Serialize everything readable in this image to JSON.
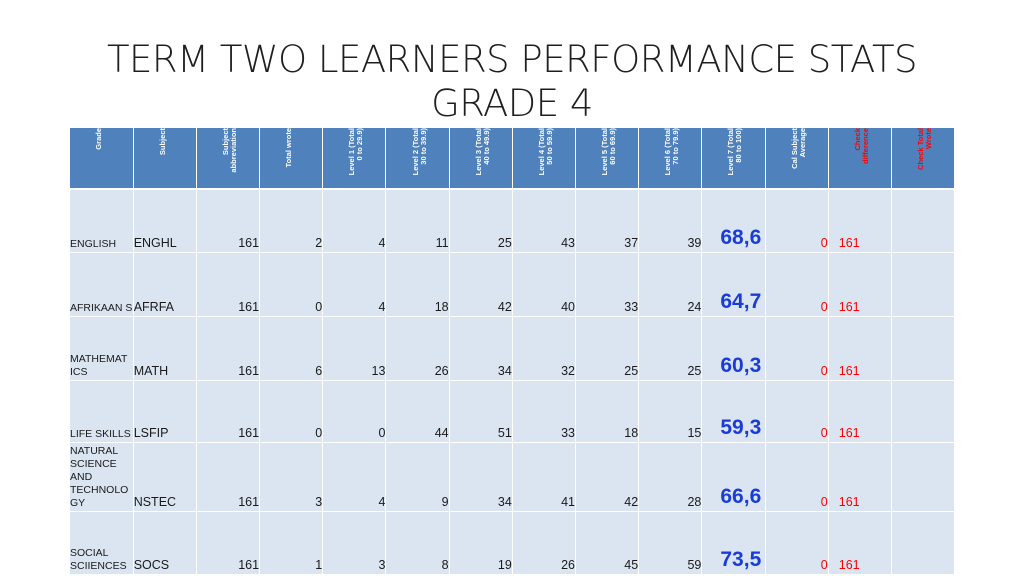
{
  "title": {
    "line1": "TERM TWO LEARNERS PERFORMANCE STATS",
    "line2": "GRADE 4"
  },
  "headers": [
    {
      "text": "Grade",
      "red": false
    },
    {
      "text": "Subject",
      "red": false
    },
    {
      "text": "Subject\nabbreviation",
      "red": false
    },
    {
      "text": "Total wrote",
      "red": false
    },
    {
      "text": "Level 1 (Total\n0 to 29.9)",
      "red": false
    },
    {
      "text": "Level 2 (Total\n30 to 39.9)",
      "red": false
    },
    {
      "text": "Level 3 (Total\n40 to 49.9)",
      "red": false
    },
    {
      "text": "Level 4 (Total\n50 to 59.9)",
      "red": false
    },
    {
      "text": "Level 5 (Total\n60 to 69.9)",
      "red": false
    },
    {
      "text": "Level 6 (Total\n70 to 79.9)",
      "red": false
    },
    {
      "text": "Level 7 (Total\n80 to 100)",
      "red": false
    },
    {
      "text": "Cal Subject\nAverage",
      "red": false
    },
    {
      "text": "Check\ndifference",
      "red": true
    },
    {
      "text": "Check Total\nWrote",
      "red": true
    }
  ],
  "rows": [
    {
      "subject": "ENGLISH",
      "abbr": "ENGHL",
      "total": "161",
      "l1": "2",
      "l2": "4",
      "l3": "11",
      "l4": "25",
      "l5": "43",
      "l6": "37",
      "l7": "39",
      "avg": "68,6",
      "diff": "0",
      "wrote": "161"
    },
    {
      "subject": "AFRIKAAN S",
      "abbr": "AFRFA",
      "total": "161",
      "l1": "0",
      "l2": "4",
      "l3": "18",
      "l4": "42",
      "l5": "40",
      "l6": "33",
      "l7": "24",
      "avg": "64,7",
      "diff": "0",
      "wrote": "161"
    },
    {
      "subject": "MATHEMAT ICS",
      "abbr": "MATH",
      "total": "161",
      "l1": "6",
      "l2": "13",
      "l3": "26",
      "l4": "34",
      "l5": "32",
      "l6": "25",
      "l7": "25",
      "avg": "60,3",
      "diff": "0",
      "wrote": "161"
    },
    {
      "subject": "LIFE SKILLS",
      "abbr": "LSFIP",
      "total": "161",
      "l1": "0",
      "l2": "0",
      "l3": "44",
      "l4": "51",
      "l5": "33",
      "l6": "18",
      "l7": "15",
      "avg": "59,3",
      "diff": "0",
      "wrote": "161"
    },
    {
      "subject": "NATURAL SCIENCE AND TECHNOLO GY",
      "abbr": "NSTEC",
      "total": "161",
      "l1": "3",
      "l2": "4",
      "l3": "9",
      "l4": "34",
      "l5": "41",
      "l6": "42",
      "l7": "28",
      "avg": "66,6",
      "diff": "0",
      "wrote": "161"
    },
    {
      "subject": "SOCIAL SCIIENCES",
      "abbr": "SOCS",
      "total": "161",
      "l1": "1",
      "l2": "3",
      "l3": "8",
      "l4": "19",
      "l5": "26",
      "l6": "45",
      "l7": "59",
      "avg": "73,5",
      "diff": "0",
      "wrote": "161"
    }
  ]
}
